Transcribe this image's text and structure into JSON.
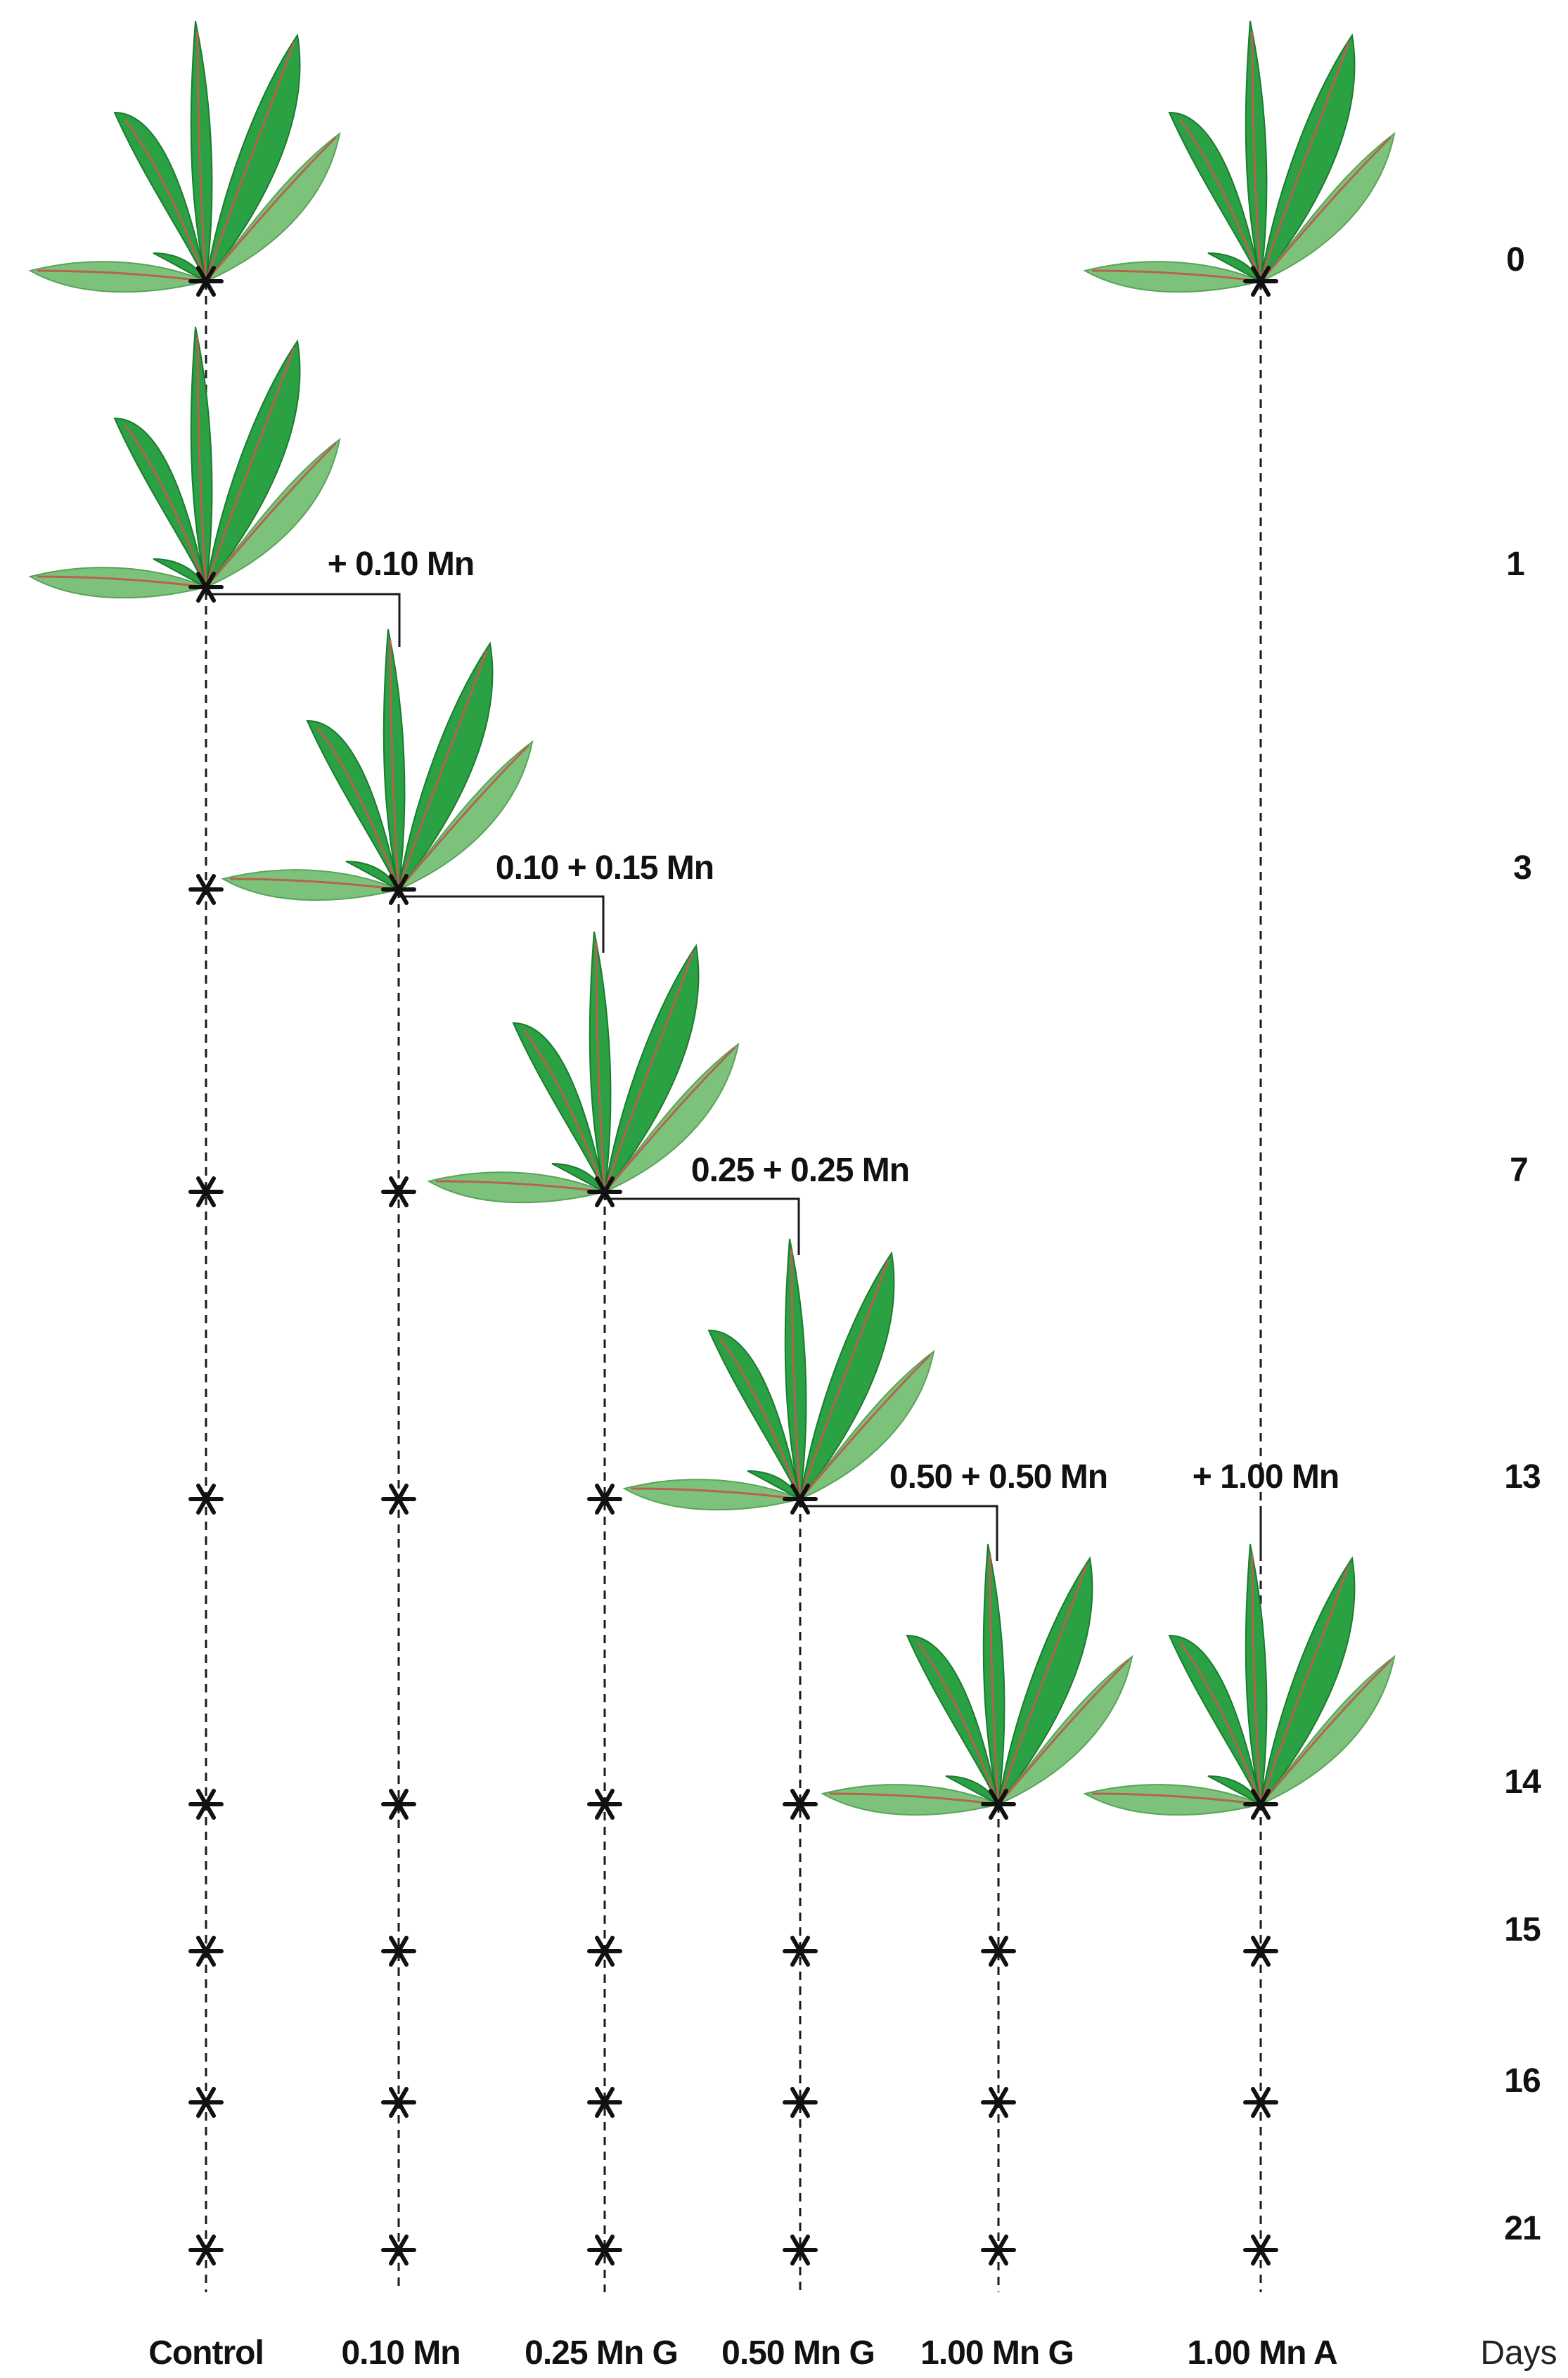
{
  "days": {
    "title": "Days",
    "values": [
      "0",
      "1",
      "3",
      "7",
      "13",
      "14",
      "15",
      "16",
      "21"
    ]
  },
  "treatments": [
    "Control",
    "0.10 Mn",
    "0.25 Mn G",
    "0.50 Mn G",
    "1.00 Mn G",
    "1.00 Mn A"
  ],
  "additions": [
    "+ 0.10 Mn",
    "0.10 + 0.15 Mn",
    "0.25 + 0.25 Mn",
    "0.50 + 0.50 Mn",
    "+ 1.00 Mn"
  ],
  "colors": {
    "leaf_dark": "#2aa143",
    "leaf_light": "#7dc27a",
    "vein": "#b5634f",
    "line": "#1a1a1a"
  }
}
